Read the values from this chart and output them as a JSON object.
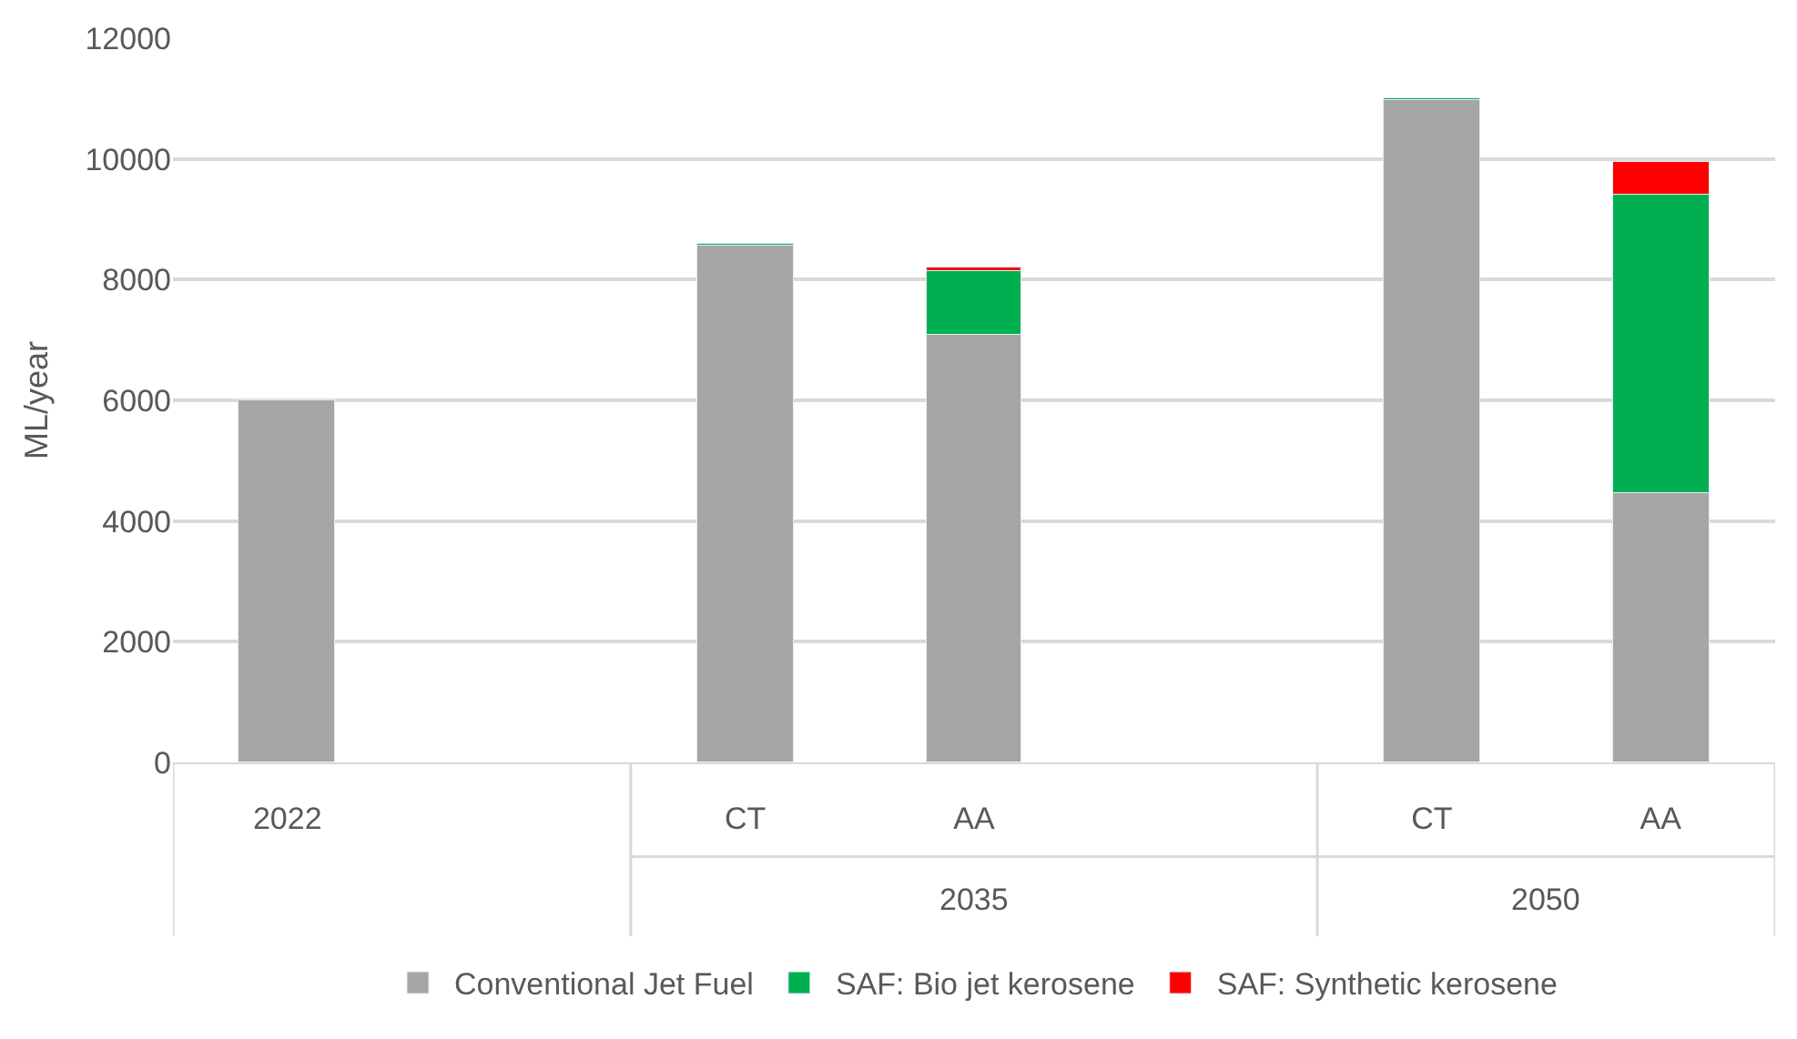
{
  "chart_data": {
    "type": "bar",
    "stacked": true,
    "ylabel": "ML/year",
    "categories": [
      "2022",
      null,
      "CT",
      "AA",
      null,
      "CT",
      "AA"
    ],
    "series": [
      {
        "name": "Conventional Jet Fuel",
        "color": "#a6a6a6",
        "values": [
          6000,
          null,
          8570,
          7100,
          null,
          10970,
          4450
        ]
      },
      {
        "name": "SAF: Bio jet kerosene",
        "color": "#00b050",
        "values": [
          null,
          null,
          30,
          1050,
          null,
          40,
          4950
        ]
      },
      {
        "name": "SAF: Synthetic kerosene",
        "color": "#ff0000",
        "values": [
          null,
          null,
          null,
          50,
          null,
          null,
          550
        ]
      }
    ],
    "ylim": [
      0,
      12000
    ],
    "yticks": [
      0,
      2000,
      4000,
      6000,
      8000,
      10000,
      12000
    ],
    "annotations": [
      "2035",
      "2050"
    ],
    "grid": "y",
    "legend": "bottom"
  }
}
